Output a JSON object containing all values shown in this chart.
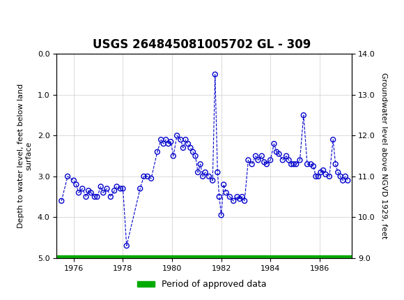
{
  "title": "USGS 264845081005702 GL - 309",
  "xlabel": "",
  "ylabel_left": "Depth to water level, feet below land\nsurface",
  "ylabel_right": "Groundwater level above NGVD 1929, feet",
  "ylim_left": [
    5.0,
    0.0
  ],
  "ylim_right": [
    9.0,
    14.0
  ],
  "xlim": [
    1975.3,
    1987.3
  ],
  "yticks_left": [
    0.0,
    1.0,
    2.0,
    3.0,
    4.0,
    5.0
  ],
  "yticks_right": [
    9.0,
    10.0,
    11.0,
    12.0,
    13.0,
    14.0
  ],
  "xticks": [
    1976,
    1978,
    1980,
    1982,
    1984,
    1986
  ],
  "header_color": "#1a6b3c",
  "line_color": "#0000cc",
  "marker_color": "#0000cc",
  "approved_color": "#00aa00",
  "background_color": "#ffffff",
  "legend_label": "Period of approved data",
  "data_x": [
    1975.5,
    1975.75,
    1976.0,
    1976.1,
    1976.2,
    1976.35,
    1976.5,
    1976.6,
    1976.7,
    1976.85,
    1976.95,
    1977.1,
    1977.2,
    1977.35,
    1977.5,
    1977.65,
    1977.75,
    1977.9,
    1978.0,
    1978.15,
    1978.7,
    1978.85,
    1979.0,
    1979.15,
    1979.4,
    1979.55,
    1979.65,
    1979.75,
    1979.85,
    1979.95,
    1980.05,
    1980.2,
    1980.35,
    1980.45,
    1980.55,
    1980.65,
    1980.75,
    1980.85,
    1980.95,
    1981.05,
    1981.15,
    1981.25,
    1981.35,
    1981.5,
    1981.65,
    1981.75,
    1981.85,
    1981.92,
    1982.0,
    1982.1,
    1982.2,
    1982.35,
    1982.5,
    1982.65,
    1982.75,
    1982.85,
    1982.95,
    1983.1,
    1983.25,
    1983.4,
    1983.5,
    1983.65,
    1983.75,
    1983.85,
    1984.0,
    1984.15,
    1984.25,
    1984.35,
    1984.5,
    1984.65,
    1984.75,
    1984.85,
    1984.95,
    1985.05,
    1985.2,
    1985.35,
    1985.5,
    1985.65,
    1985.75,
    1985.85,
    1985.95,
    1986.05,
    1986.15,
    1986.25,
    1986.4,
    1986.55,
    1986.65,
    1986.75,
    1986.85,
    1986.95,
    1987.05,
    1987.15
  ],
  "data_y": [
    3.6,
    3.0,
    3.1,
    3.2,
    3.4,
    3.3,
    3.5,
    3.35,
    3.4,
    3.5,
    3.5,
    3.25,
    3.4,
    3.3,
    3.5,
    3.35,
    3.25,
    3.3,
    3.3,
    4.7,
    3.3,
    3.0,
    3.0,
    3.05,
    2.4,
    2.1,
    2.2,
    2.1,
    2.2,
    2.15,
    2.5,
    2.0,
    2.1,
    2.3,
    2.1,
    2.2,
    2.3,
    2.4,
    2.5,
    2.9,
    2.7,
    3.0,
    2.9,
    3.0,
    3.1,
    0.5,
    2.9,
    3.5,
    3.95,
    3.2,
    3.4,
    3.5,
    3.6,
    3.5,
    3.55,
    3.5,
    3.6,
    2.6,
    2.7,
    2.5,
    2.6,
    2.5,
    2.65,
    2.7,
    2.6,
    2.2,
    2.4,
    2.45,
    2.6,
    2.5,
    2.6,
    2.7,
    2.7,
    2.7,
    2.6,
    1.5,
    2.7,
    2.7,
    2.75,
    3.0,
    3.0,
    2.9,
    2.85,
    2.95,
    3.0,
    2.1,
    2.7,
    2.9,
    3.0,
    3.1,
    3.0,
    3.1
  ]
}
